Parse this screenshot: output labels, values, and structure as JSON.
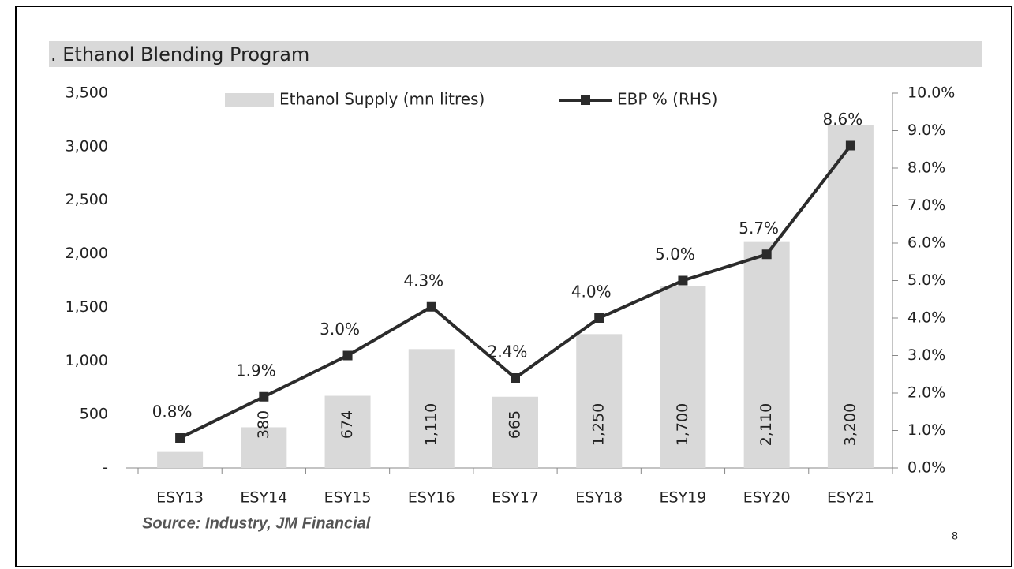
{
  "chart_data": {
    "type": "bar-line",
    "title": ". Ethanol Blending Program",
    "source": "Source: Industry, JM Financial",
    "page_number": "8",
    "categories": [
      "ESY13",
      "ESY14",
      "ESY15",
      "ESY16",
      "ESY17",
      "ESY18",
      "ESY19",
      "ESY20",
      "ESY21"
    ],
    "series": [
      {
        "name": "Ethanol Supply (mn litres)",
        "type": "bar",
        "color": "#d9d9d9",
        "values": [
          150,
          380,
          674,
          1110,
          665,
          1250,
          1700,
          2110,
          3200
        ],
        "value_labels": [
          null,
          "380",
          "674",
          "1,110",
          "665",
          "1,250",
          "1,700",
          "2,110",
          "3,200"
        ]
      },
      {
        "name": "EBP % (RHS)",
        "type": "line",
        "axis": "y2",
        "color": "#2b2b2b",
        "values": [
          0.8,
          1.9,
          3.0,
          4.3,
          2.4,
          4.0,
          5.0,
          5.7,
          8.6
        ],
        "value_labels": [
          "0.8%",
          "1.9%",
          "3.0%",
          "4.3%",
          "2.4%",
          "4.0%",
          "5.0%",
          "5.7%",
          "8.6%"
        ]
      }
    ],
    "ylim": [
      0,
      3500
    ],
    "yticks": [
      {
        "value": 0,
        "label": "-"
      },
      500,
      {
        "value": 1000,
        "label": "1,000"
      },
      {
        "value": 1500,
        "label": "1,500"
      },
      {
        "value": 2000,
        "label": "2,000"
      },
      {
        "value": 2500,
        "label": "2,500"
      },
      {
        "value": 3000,
        "label": "3,000"
      },
      {
        "value": 3500,
        "label": "3,500"
      }
    ],
    "y2lim": [
      0,
      10
    ],
    "y2ticks": [
      {
        "value": 0,
        "label": "0.0%"
      },
      {
        "value": 1,
        "label": "1.0%"
      },
      {
        "value": 2,
        "label": "2.0%"
      },
      {
        "value": 3,
        "label": "3.0%"
      },
      {
        "value": 4,
        "label": "4.0%"
      },
      {
        "value": 5,
        "label": "5.0%"
      },
      {
        "value": 6,
        "label": "6.0%"
      },
      {
        "value": 7,
        "label": "7.0%"
      },
      {
        "value": 8,
        "label": "8.0%"
      },
      {
        "value": 9,
        "label": "9.0%"
      },
      {
        "value": 10,
        "label": "10.0%"
      }
    ],
    "legend": "top"
  }
}
